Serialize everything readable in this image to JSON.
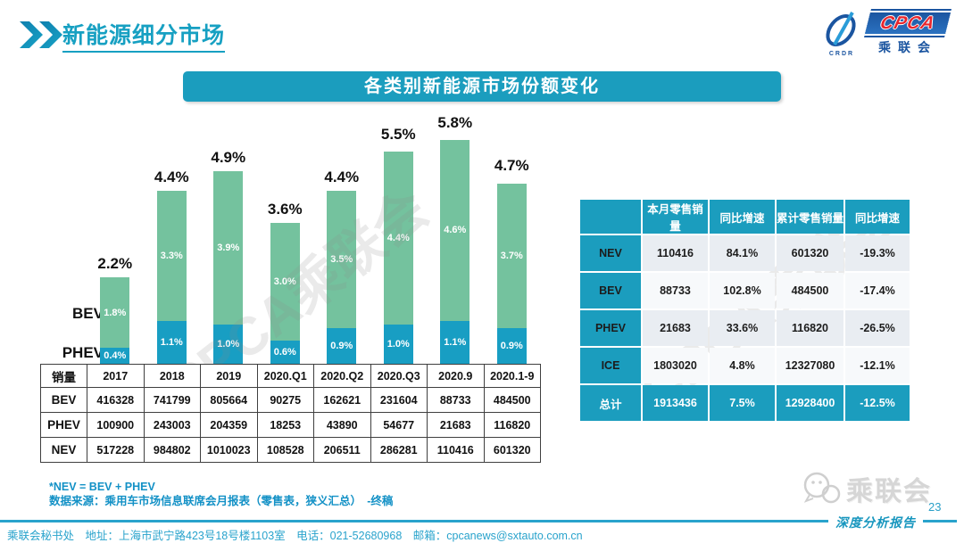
{
  "header": {
    "title": "新能源细分市场"
  },
  "logo": {
    "cpca": "CPCA",
    "crdr": "CRDR",
    "name": "乘联会"
  },
  "banner": {
    "title": "各类别新能源市场份额变化"
  },
  "chart_data": {
    "type": "bar",
    "stacked": true,
    "title": "各类别新能源市场份额变化",
    "categories": [
      "2017",
      "2018",
      "2019",
      "2020.Q1",
      "2020.Q2",
      "2020.Q3",
      "2020.9",
      "2020.1-9"
    ],
    "series": [
      {
        "name": "PHEV",
        "color": "#189ec3",
        "values": [
          0.4,
          1.1,
          1.0,
          0.6,
          0.9,
          1.0,
          1.1,
          0.9
        ]
      },
      {
        "name": "BEV",
        "color": "#74c29e",
        "values": [
          1.8,
          3.3,
          3.9,
          3.0,
          3.5,
          4.4,
          4.6,
          3.7
        ]
      }
    ],
    "totals": [
      2.2,
      4.4,
      4.9,
      3.6,
      4.4,
      5.5,
      5.8,
      4.7
    ],
    "unit": "%",
    "ylim": [
      0,
      6.2
    ],
    "grid": false,
    "legend_position": "left-axis",
    "axis_labels": [
      "BEV",
      "PHEV"
    ]
  },
  "sales_table": {
    "header": [
      "销量",
      "2017",
      "2018",
      "2019",
      "2020.Q1",
      "2020.Q2",
      "2020.Q3",
      "2020.9",
      "2020.1-9"
    ],
    "rows": [
      {
        "label": "BEV",
        "values": [
          "416328",
          "741799",
          "805664",
          "90275",
          "162621",
          "231604",
          "88733",
          "484500"
        ]
      },
      {
        "label": "PHEV",
        "values": [
          "100900",
          "243003",
          "204359",
          "18253",
          "43890",
          "54677",
          "21683",
          "116820"
        ]
      },
      {
        "label": "NEV",
        "values": [
          "517228",
          "984802",
          "1010023",
          "108528",
          "206511",
          "286281",
          "110416",
          "601320"
        ]
      }
    ]
  },
  "summary_table": {
    "header": [
      "",
      "本月零售销量",
      "同比增速",
      "累计零售销量",
      "同比增速"
    ],
    "rows": [
      {
        "label": "NEV",
        "values": [
          "110416",
          "84.1%",
          "601320",
          "-19.3%"
        ],
        "highlight": false
      },
      {
        "label": "BEV",
        "values": [
          "88733",
          "102.8%",
          "484500",
          "-17.4%"
        ],
        "highlight": false
      },
      {
        "label": "PHEV",
        "values": [
          "21683",
          "33.6%",
          "116820",
          "-26.5%"
        ],
        "highlight": false
      },
      {
        "label": "ICE",
        "values": [
          "1803020",
          "4.8%",
          "12327080",
          "-12.1%"
        ],
        "highlight": false
      },
      {
        "label": "总计",
        "values": [
          "1913436",
          "7.5%",
          "12928400",
          "-12.5%"
        ],
        "highlight": true
      }
    ]
  },
  "notes": {
    "line1": "*NEV = BEV + PHEV",
    "line2": "数据来源：乘用车市场信息联席会月报表（零售表，狭义汇总）　-终稿"
  },
  "footer": {
    "text": "乘联会秘书处　地址：上海市武宁路423号18号楼1103室　电话：021-52680968　邮箱：cpcanews@sxtauto.com.cn",
    "page": "23",
    "report_label": "深度分析报告",
    "wechat_name": "乘联会"
  },
  "watermark": {
    "text": "CPCA乘联会"
  },
  "colors": {
    "teal": "#1b9dbe",
    "bar_green": "#74c29e",
    "bar_blue": "#189ec3",
    "note_blue": "#1391c6",
    "logo_blue": "#1b55a0",
    "logo_red": "#e8262d"
  }
}
